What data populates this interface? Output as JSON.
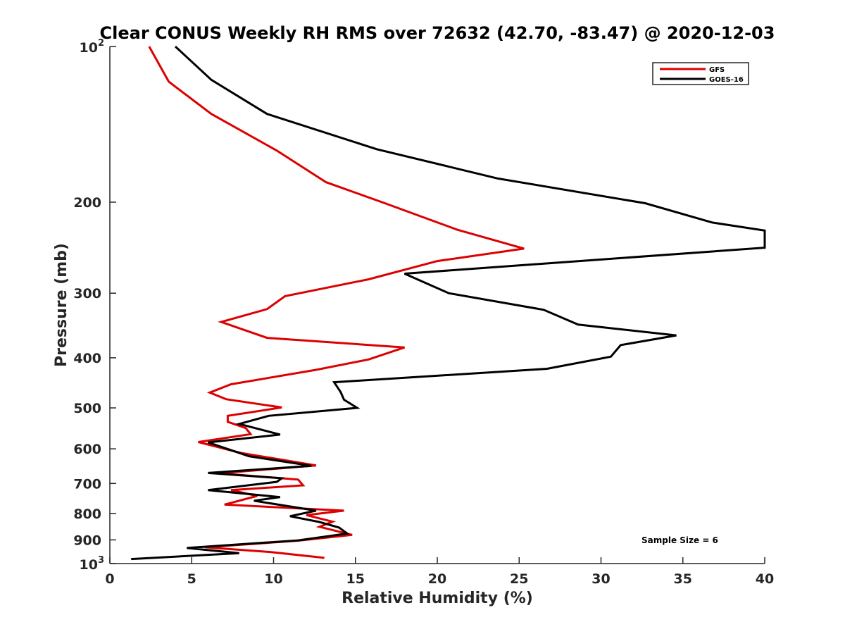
{
  "chart_data": {
    "type": "line",
    "title": "Clear CONUS Weekly RH RMS over 72632 (42.70, -83.47) @ 2020-12-03",
    "xlabel": "Relative Humidity (%)",
    "ylabel": "Pressure (mb)",
    "xlim": [
      0,
      40
    ],
    "ylim": [
      100,
      1000
    ],
    "y_scale": "log",
    "y_reversed": true,
    "x_ticks": [
      "0",
      "5",
      "10",
      "15",
      "20",
      "25",
      "30",
      "35",
      "40"
    ],
    "y_ticks": [
      {
        "value": 100,
        "base": "10",
        "exp": "2",
        "label": ""
      },
      {
        "value": 200,
        "label": "200"
      },
      {
        "value": 300,
        "label": "300"
      },
      {
        "value": 400,
        "label": "400"
      },
      {
        "value": 500,
        "label": "500"
      },
      {
        "value": 600,
        "label": "600"
      },
      {
        "value": 700,
        "label": "700"
      },
      {
        "value": 800,
        "label": "800"
      },
      {
        "value": 900,
        "label": "900"
      },
      {
        "value": 1000,
        "base": "10",
        "exp": "3",
        "label": ""
      }
    ],
    "grid": false,
    "legend_position": "top-right",
    "annotation": "Sample Size = 6",
    "series": [
      {
        "name": "GFS",
        "color": "#dd0000",
        "points": [
          [
            2.4,
            100
          ],
          [
            3.6,
            117
          ],
          [
            6.2,
            135
          ],
          [
            10.2,
            159
          ],
          [
            13.2,
            183
          ],
          [
            16.8,
            201
          ],
          [
            21.2,
            226
          ],
          [
            25.3,
            246
          ],
          [
            20.0,
            260
          ],
          [
            15.8,
            282
          ],
          [
            10.7,
            304
          ],
          [
            9.6,
            322
          ],
          [
            6.8,
            341
          ],
          [
            9.6,
            366
          ],
          [
            18.0,
            382
          ],
          [
            15.8,
            403
          ],
          [
            12.6,
            422
          ],
          [
            7.4,
            450
          ],
          [
            6.1,
            467
          ],
          [
            7.1,
            481
          ],
          [
            10.5,
            499
          ],
          [
            7.2,
            518
          ],
          [
            7.2,
            532
          ],
          [
            8.3,
            547
          ],
          [
            8.6,
            562
          ],
          [
            5.4,
            582
          ],
          [
            8.0,
            611
          ],
          [
            12.6,
            646
          ],
          [
            6.7,
            669
          ],
          [
            11.5,
            688
          ],
          [
            11.8,
            706
          ],
          [
            7.4,
            721
          ],
          [
            9.0,
            740
          ],
          [
            7.0,
            769
          ],
          [
            14.3,
            790
          ],
          [
            12.0,
            806
          ],
          [
            13.6,
            830
          ],
          [
            12.8,
            849
          ],
          [
            14.8,
            880
          ],
          [
            11.5,
            903
          ],
          [
            5.8,
            930
          ],
          [
            9.8,
            950
          ],
          [
            13.1,
            975
          ]
        ]
      },
      {
        "name": "GOES-16",
        "color": "#000000",
        "points": [
          [
            4.0,
            100
          ],
          [
            6.2,
            116
          ],
          [
            9.6,
            135
          ],
          [
            16.3,
            158
          ],
          [
            23.7,
            180
          ],
          [
            32.7,
            201
          ],
          [
            36.8,
            219
          ],
          [
            40.0,
            227
          ],
          [
            40.0,
            245
          ],
          [
            18.0,
            275
          ],
          [
            20.7,
            300
          ],
          [
            26.5,
            323
          ],
          [
            28.6,
            345
          ],
          [
            34.6,
            362
          ],
          [
            31.2,
            378
          ],
          [
            30.6,
            398
          ],
          [
            26.7,
            420
          ],
          [
            13.7,
            446
          ],
          [
            14.1,
            466
          ],
          [
            14.3,
            482
          ],
          [
            15.1,
            500
          ],
          [
            9.7,
            518
          ],
          [
            7.9,
            537
          ],
          [
            10.4,
            563
          ],
          [
            6.0,
            583
          ],
          [
            8.5,
            620
          ],
          [
            12.3,
            647
          ],
          [
            6.0,
            668
          ],
          [
            10.5,
            684
          ],
          [
            10.2,
            695
          ],
          [
            6.0,
            721
          ],
          [
            10.4,
            744
          ],
          [
            8.8,
            756
          ],
          [
            12.6,
            790
          ],
          [
            11.0,
            810
          ],
          [
            12.8,
            831
          ],
          [
            14.0,
            852
          ],
          [
            14.5,
            875
          ],
          [
            11.5,
            902
          ],
          [
            4.7,
            933
          ],
          [
            7.9,
            955
          ],
          [
            1.3,
            980
          ]
        ]
      }
    ]
  }
}
